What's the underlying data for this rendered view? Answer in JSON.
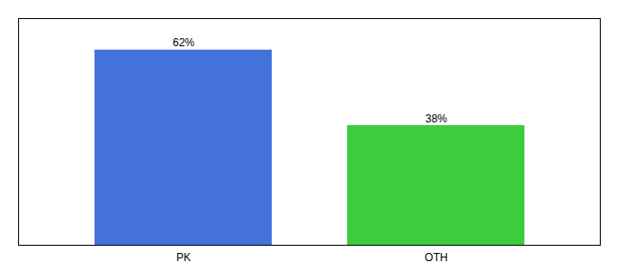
{
  "chart_data": {
    "type": "bar",
    "categories": [
      "PK",
      "OTH"
    ],
    "values": [
      62,
      38
    ],
    "value_labels": [
      "62%",
      "38%"
    ],
    "colors": [
      "#4472db",
      "#3dcc3d"
    ],
    "ylim": [
      0,
      72
    ],
    "grid": false,
    "data_labels": true,
    "tick_labels": "x"
  }
}
